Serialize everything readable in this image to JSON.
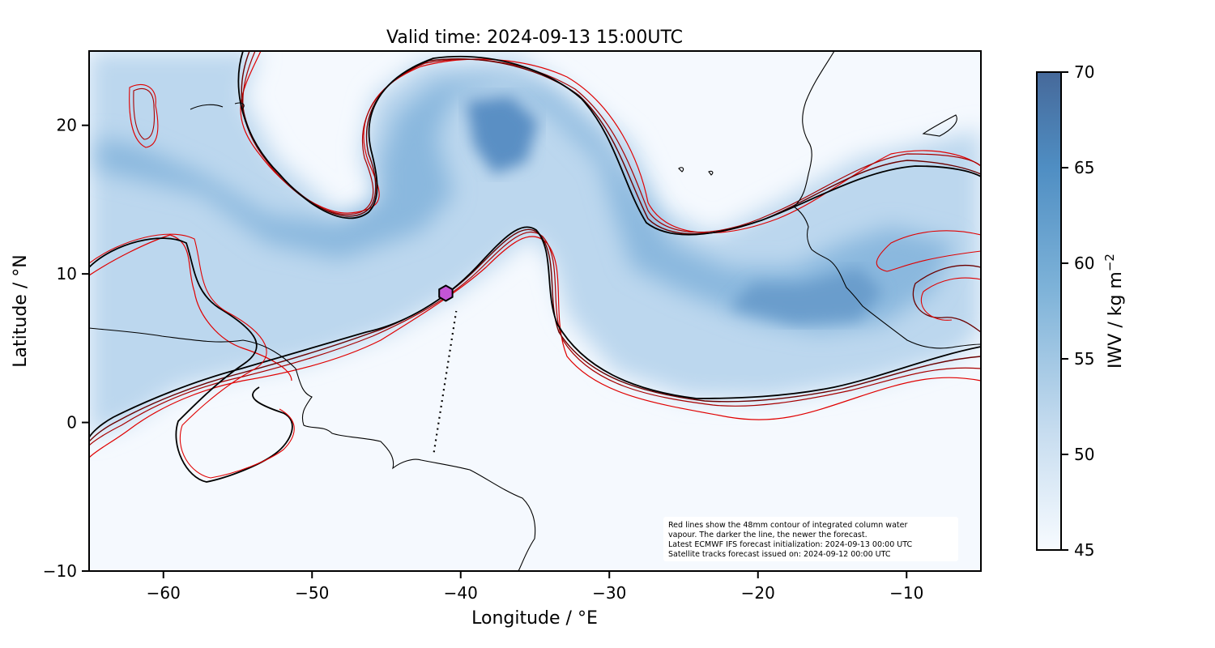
{
  "title": "Valid time: 2024-09-13 15:00UTC",
  "map": {
    "lon_range": [
      -65,
      -5
    ],
    "lat_range": [
      -10,
      25
    ],
    "xlabel": "Longitude / °E",
    "ylabel": "Latitude / °N",
    "x_ticks": [
      {
        "value": -60,
        "label": "−60"
      },
      {
        "value": -50,
        "label": "−50"
      },
      {
        "value": -40,
        "label": "−40"
      },
      {
        "value": -30,
        "label": "−30"
      },
      {
        "value": -20,
        "label": "−20"
      },
      {
        "value": -10,
        "label": "−10"
      }
    ],
    "y_ticks": [
      {
        "value": 20,
        "label": "20"
      },
      {
        "value": 10,
        "label": "10"
      },
      {
        "value": 0,
        "label": "0"
      },
      {
        "value": -10,
        "label": "−10"
      }
    ],
    "background_color": "#f5f9fe",
    "field_color": "#4a86c0"
  },
  "colorbar": {
    "label": "IWV / kg m",
    "label_superscript": "−2",
    "min": 45,
    "max": 70,
    "ticks": [
      {
        "value": 70,
        "label": "70"
      },
      {
        "value": 65,
        "label": "65"
      },
      {
        "value": 60,
        "label": "60"
      },
      {
        "value": 55,
        "label": "55"
      },
      {
        "value": 50,
        "label": "50"
      },
      {
        "value": 45,
        "label": "45"
      }
    ],
    "color_low": "#f7fbff",
    "color_high": "#46699a"
  },
  "marker": {
    "lon": -41,
    "lat": 8.7,
    "color": "#c455d6",
    "icon": "hexagon-marker-icon"
  },
  "satellite_track": {
    "start": {
      "lon": -41.8,
      "lat": -2
    },
    "end": {
      "lon": -40.3,
      "lat": 7.5
    }
  },
  "annotation": {
    "lines": [
      "Red lines show the 48mm contour of integrated column water",
      "vapour. The darker the line, the newer the forecast.",
      "Latest ECMWF IFS forecast initialization: 2024-09-13 00:00 UTC",
      "Satellite tracks forecast issued on: 2024-09-12 00:00 UTC"
    ]
  },
  "contour_colors": [
    "#000000",
    "#6b0000",
    "#a80000",
    "#e00000"
  ]
}
